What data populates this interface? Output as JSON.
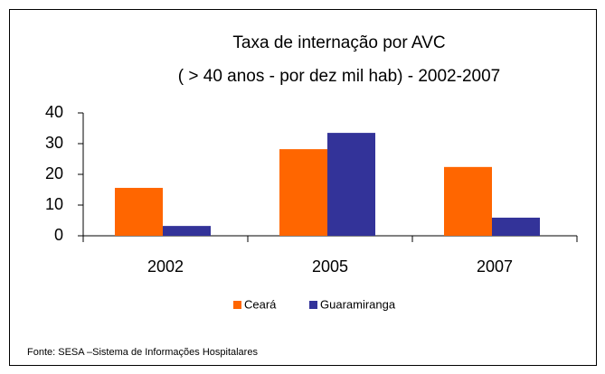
{
  "chart_data": {
    "type": "bar",
    "title": "Taxa de internação por AVC",
    "subtitle": "( > 40 anos - por dez mil hab) - 2002-2007",
    "categories": [
      "2002",
      "2005",
      "2007"
    ],
    "series": [
      {
        "name": "Ceará",
        "color": "#ff6600",
        "values": [
          15.6,
          28.2,
          22.4
        ]
      },
      {
        "name": "Guaramiranga",
        "color": "#333399",
        "values": [
          3.2,
          33.5,
          5.9
        ]
      }
    ],
    "ylim": [
      0,
      40
    ],
    "yticks": [
      0,
      10,
      20,
      30,
      40
    ],
    "legend": "bottom",
    "source": "Fonte: SESA –Sistema de Informações Hospitalares"
  }
}
